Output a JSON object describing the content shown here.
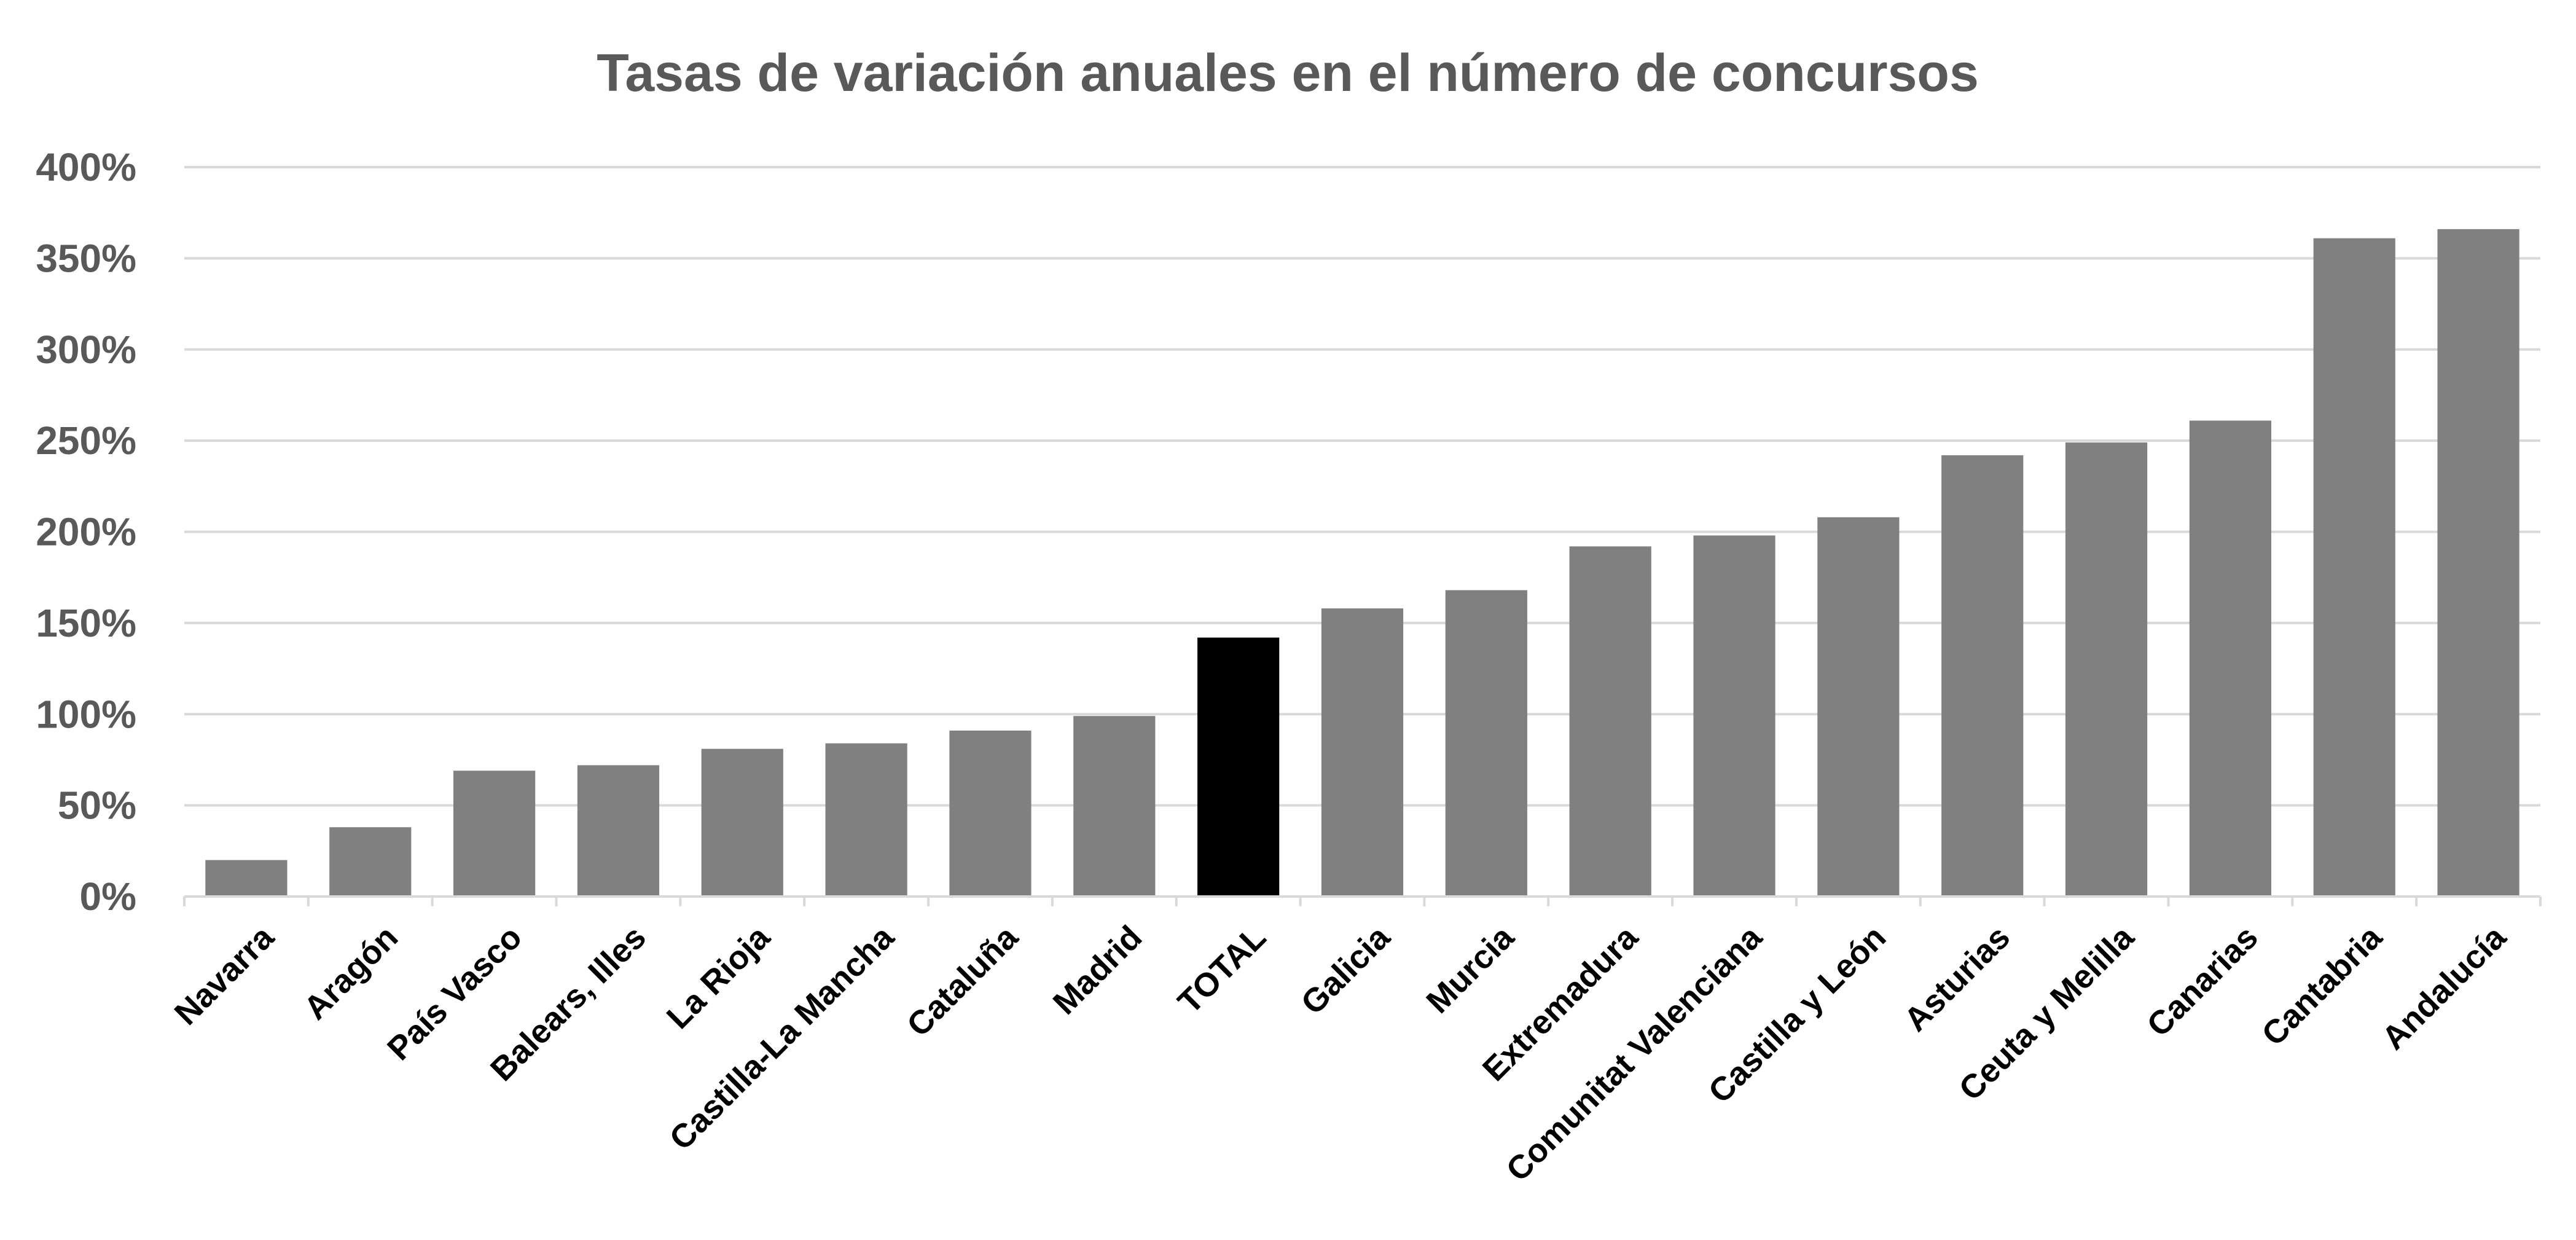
{
  "chart_data": {
    "type": "bar",
    "title": "Tasas de variación anuales en el número de concursos",
    "xlabel": "",
    "ylabel": "",
    "ylim": [
      0,
      400
    ],
    "y_ticks": [
      "0%",
      "50%",
      "100%",
      "150%",
      "200%",
      "250%",
      "300%",
      "350%",
      "400%"
    ],
    "y_unit": "%",
    "grid": true,
    "legend": "none",
    "categories": [
      "Navarra",
      "Aragón",
      "País Vasco",
      "Balears, Illes",
      "La Rioja",
      "Castilla-La Mancha",
      "Cataluña",
      "Madrid",
      "TOTAL",
      "Galicia",
      "Murcia",
      "Extremadura",
      "Comunitat Valenciana",
      "Castilla y León",
      "Asturias",
      "Ceuta y Melilla",
      "Canarias",
      "Cantabria",
      "Andalucía"
    ],
    "values": [
      20,
      38,
      69,
      72,
      81,
      84,
      91,
      99,
      142,
      158,
      168,
      192,
      198,
      208,
      242,
      249,
      261,
      361,
      366
    ],
    "highlight_category": "TOTAL",
    "colors": {
      "bar": "#808080",
      "highlight": "#000000",
      "grid": "#d9d9d9",
      "title": "#595959",
      "tick_text": "#595959",
      "category_text": "#000000"
    }
  }
}
